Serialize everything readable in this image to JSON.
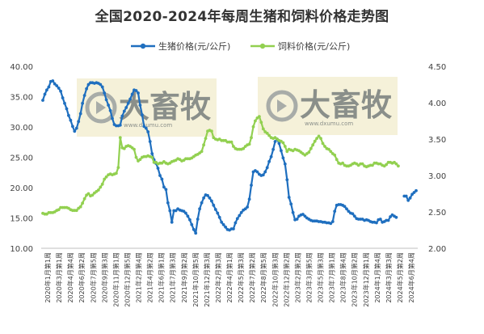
{
  "chart_data": {
    "type": "line",
    "title": "全国2020-2024年每周生猪和饲料价格走势图",
    "series": [
      {
        "name": "生猪价格(元/公斤)",
        "axis": "left",
        "color": "#1f6fbf",
        "values": [
          34.4,
          35.4,
          36.1,
          36.6,
          37.5,
          37.6,
          37.1,
          36.8,
          36.4,
          35.9,
          34.8,
          33.9,
          33.0,
          31.9,
          31.1,
          30.1,
          29.3,
          29.8,
          30.9,
          32.2,
          33.9,
          35.2,
          36.3,
          37.0,
          37.3,
          37.3,
          37.2,
          37.3,
          37.2,
          37.0,
          36.6,
          35.6,
          34.5,
          33.6,
          32.7,
          31.4,
          30.4,
          30.2,
          30.2,
          30.3,
          31.8,
          32.6,
          33.2,
          33.9,
          34.6,
          35.4,
          36.1,
          36.0,
          35.6,
          33.6,
          32.0,
          30.1,
          29.8,
          29.2,
          27.6,
          25.6,
          24.6,
          24.0,
          23.2,
          22.0,
          21.4,
          20.1,
          19.7,
          17.5,
          16.2,
          14.3,
          16.2,
          16.2,
          16.5,
          16.3,
          16.2,
          16.1,
          15.8,
          15.3,
          14.7,
          13.9,
          13.1,
          12.5,
          14.8,
          16.5,
          17.5,
          18.3,
          18.8,
          18.7,
          18.3,
          17.8,
          17.1,
          16.4,
          15.8,
          15.1,
          14.3,
          13.9,
          13.5,
          13.1,
          13.0,
          13.2,
          13.2,
          14.2,
          14.9,
          15.4,
          15.9,
          16.3,
          16.5,
          16.8,
          18.1,
          20.4,
          22.6,
          22.8,
          22.6,
          22.2,
          22.0,
          22.1,
          22.6,
          23.3,
          24.3,
          25.1,
          26.3,
          27.6,
          28.0,
          27.3,
          26.1,
          24.9,
          23.9,
          21.3,
          18.4,
          17.3,
          15.9,
          14.7,
          14.8,
          15.3,
          15.5,
          15.6,
          15.3,
          15.0,
          14.8,
          14.6,
          14.5,
          14.5,
          14.5,
          14.4,
          14.4,
          14.3,
          14.3,
          14.2,
          14.2,
          14.1,
          14.4,
          16.1,
          17.1,
          17.2,
          17.2,
          17.1,
          16.9,
          16.5,
          16.1,
          15.8,
          15.7,
          15.3,
          14.9,
          14.8,
          14.8,
          14.8,
          14.6,
          14.7,
          14.6,
          14.4,
          14.3,
          14.3,
          14.2,
          14.7,
          14.8,
          14.3,
          14.4,
          14.6,
          14.6,
          15.2,
          15.5,
          15.3,
          15.1,
          null,
          null,
          null,
          18.6,
          18.6,
          17.9,
          18.3,
          18.9,
          19.2,
          19.5
        ]
      },
      {
        "name": "饲料价格(元/公斤)",
        "axis": "right",
        "color": "#92d050",
        "values": [
          2.48,
          2.47,
          2.47,
          2.49,
          2.49,
          2.49,
          2.5,
          2.52,
          2.53,
          2.56,
          2.56,
          2.56,
          2.56,
          2.55,
          2.53,
          2.52,
          2.52,
          2.52,
          2.55,
          2.57,
          2.62,
          2.68,
          2.73,
          2.75,
          2.72,
          2.73,
          2.76,
          2.78,
          2.8,
          2.84,
          2.88,
          2.95,
          2.98,
          3.01,
          3.02,
          3.01,
          3.02,
          3.03,
          3.11,
          3.52,
          3.38,
          3.37,
          3.4,
          3.41,
          3.4,
          3.38,
          3.36,
          3.25,
          3.2,
          3.22,
          3.25,
          3.26,
          3.26,
          3.27,
          3.26,
          3.25,
          3.18,
          3.18,
          3.16,
          3.17,
          3.17,
          3.19,
          3.17,
          3.16,
          3.17,
          3.19,
          3.2,
          3.21,
          3.23,
          3.22,
          3.2,
          3.21,
          3.23,
          3.23,
          3.23,
          3.24,
          3.26,
          3.28,
          3.29,
          3.31,
          3.33,
          3.42,
          3.51,
          3.61,
          3.62,
          3.61,
          3.52,
          3.5,
          3.49,
          3.5,
          3.48,
          3.48,
          3.48,
          3.46,
          3.46,
          3.46,
          3.4,
          3.37,
          3.36,
          3.36,
          3.36,
          3.37,
          3.4,
          3.42,
          3.43,
          3.52,
          3.67,
          3.75,
          3.79,
          3.81,
          3.73,
          3.64,
          3.6,
          3.58,
          3.55,
          3.52,
          3.51,
          3.52,
          3.5,
          3.48,
          3.47,
          3.45,
          3.4,
          3.33,
          3.36,
          3.35,
          3.34,
          3.36,
          3.35,
          3.34,
          3.32,
          3.3,
          3.28,
          3.3,
          3.32,
          3.37,
          3.42,
          3.47,
          3.51,
          3.54,
          3.51,
          3.44,
          3.4,
          3.37,
          3.36,
          3.33,
          3.3,
          3.28,
          3.22,
          3.17,
          3.16,
          3.17,
          3.14,
          3.13,
          3.13,
          3.14,
          3.16,
          3.17,
          3.16,
          3.14,
          3.16,
          3.16,
          3.13,
          3.12,
          3.13,
          3.14,
          3.14,
          3.17,
          3.17,
          3.16,
          3.16,
          3.14,
          3.13,
          3.15,
          3.18,
          3.18,
          3.17,
          3.18,
          3.16,
          3.13
        ]
      }
    ],
    "x_tick_labels": [
      "2020年1月第1周",
      "2020年3月第1周",
      "2020年4月第4周",
      "2020年6月第2周",
      "2020年7月第5周",
      "2020年9月第3周",
      "2020年11月第1周",
      "2020年12月第5周",
      "2021年2月第4周",
      "2021年4月第2周",
      "2021年6月第1周",
      "2021年7月第3周",
      "2021年9月第2周",
      "2021年10月第5周",
      "2021年12月第3周",
      "2022年2月第3周",
      "2022年4月第1周",
      "2022年5月第3周",
      "2022年7月第2周",
      "2022年8月第5周",
      "2022年10月第3周",
      "2022年12月第2周",
      "2023年2月第2周",
      "2023年3月第5周",
      "2023年5月第3周",
      "2023年7月第1周",
      "2023年8月第4周",
      "2023年10月第2周",
      "2023年12月第1周",
      "2024年1月第4周",
      "2024年3月第3周",
      "2024年5月第2周",
      "2024年6月第4周"
    ],
    "y_left": {
      "min": 10,
      "max": 40,
      "step": 5,
      "tick_labels": [
        "10.00",
        "15.00",
        "20.00",
        "25.00",
        "30.00",
        "35.00",
        "40.00"
      ]
    },
    "y_right": {
      "min": 2.0,
      "max": 4.5,
      "step": 0.5,
      "tick_labels": [
        "2.00",
        "2.50",
        "3.00",
        "3.50",
        "4.00",
        "4.50"
      ]
    },
    "legend_position": "top-center",
    "grid": false,
    "watermark": {
      "text": "大畜牧",
      "url": "www.dxumu.com"
    }
  }
}
